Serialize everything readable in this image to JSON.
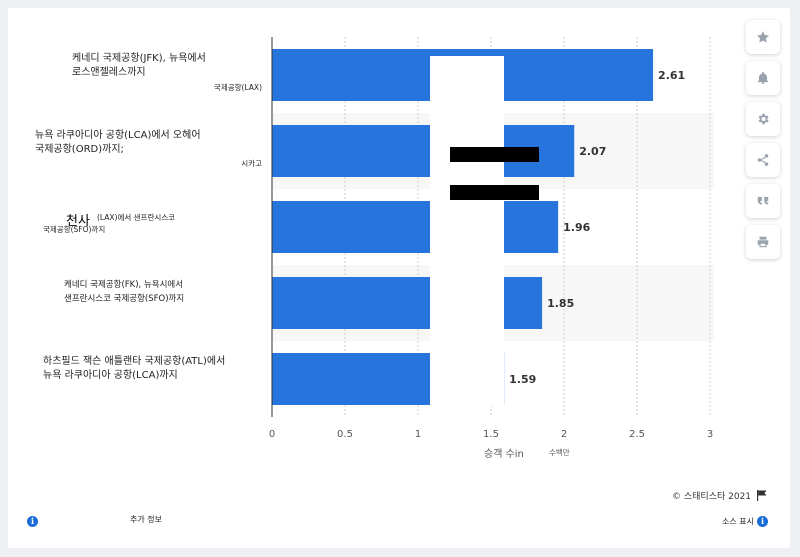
{
  "chart_data": {
    "type": "bar",
    "orientation": "horizontal",
    "categories": [
      [
        "케네디 국제공항(JFK), 뉴욕에서",
        "로스앤젤레스까지",
        "국제공항(LAX)"
      ],
      [
        "뉴욕 라쿠아디아 공항(LCA)에서 오헤어",
        "국제공항(ORD)까지;",
        "시카고"
      ],
      [
        "(LAX)에서 샌프란시스코",
        "국제공항(SFO)까지"
      ],
      [
        "케네디 국제공항(FK), 뉴욕시에서",
        "샌프란시스코 국제공항(SFO)까지"
      ],
      [
        "하츠필드 잭슨 애틀랜타 국제공항(ATL)에서",
        "뉴욕 라쿠아디아 공항(LCA)까지"
      ]
    ],
    "values": [
      2.61,
      2.07,
      1.96,
      1.85,
      1.59
    ],
    "value_labels": [
      "2.61",
      "2.07",
      "1.96",
      "1.85",
      "1.59"
    ],
    "xlabel": "승객 수in",
    "xlabel_unit": "수백만",
    "xlim": [
      0,
      3
    ],
    "xticks": [
      "0",
      "0.5",
      "1",
      "1.5",
      "2",
      "2.5",
      "3"
    ],
    "grid": true,
    "bar_color": "#2775dc",
    "stripe_color": "#f7f7f7"
  },
  "overlay_text": "천사",
  "footer": {
    "copyright": "© 스태티스타 2021",
    "additional_info": "추가 정보",
    "show_source": "소스 표시"
  },
  "toolbar": [
    "star-icon",
    "bell-icon",
    "gear-icon",
    "share-icon",
    "quote-icon",
    "print-icon"
  ]
}
